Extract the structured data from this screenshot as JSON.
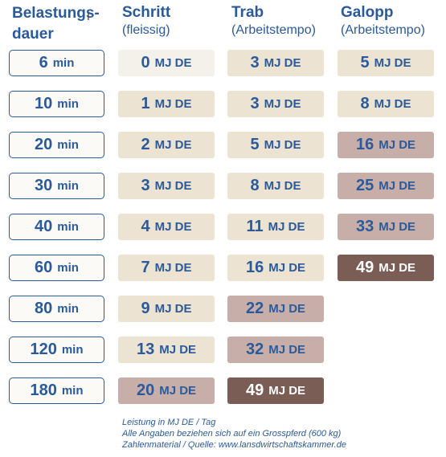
{
  "headers": {
    "duration": {
      "line1": "Belastungs-",
      "line2": "dauer"
    },
    "schritt": {
      "title": "Schritt",
      "sub": "(fleissig)"
    },
    "trab": {
      "title": "Trab",
      "sub": "(Arbeitstempo)"
    },
    "galopp": {
      "title": "Galopp",
      "sub": "(Arbeitstempo)"
    }
  },
  "unit_min": "min",
  "unit_energy": "MJ DE",
  "rows": [
    {
      "duration": "6",
      "schritt": "0",
      "trab": "3",
      "galopp": "5"
    },
    {
      "duration": "10",
      "schritt": "1",
      "trab": "3",
      "galopp": "8"
    },
    {
      "duration": "20",
      "schritt": "2",
      "trab": "5",
      "galopp": "16"
    },
    {
      "duration": "30",
      "schritt": "3",
      "trab": "8",
      "galopp": "25"
    },
    {
      "duration": "40",
      "schritt": "4",
      "trab": "11",
      "galopp": "33"
    },
    {
      "duration": "60",
      "schritt": "7",
      "trab": "16",
      "galopp": "49"
    },
    {
      "duration": "80",
      "schritt": "9",
      "trab": "22",
      "galopp": ""
    },
    {
      "duration": "120",
      "schritt": "13",
      "trab": "32",
      "galopp": ""
    },
    {
      "duration": "180",
      "schritt": "20",
      "trab": "49",
      "galopp": ""
    }
  ],
  "cell_colors": {
    "lvl_0": "#f3f1e9",
    "lvl_1": "#ece3d2",
    "lvl_2": "#c8aea8",
    "lvl_3": "#7a5e55"
  },
  "notes": [
    "Leistung in MJ DE / Tag",
    "Alle Angaben beziehen sich auf ein Grosspferd (600 kg)",
    "Zahlenmaterial / Quelle: www.lansdwirtschaftskammer.de"
  ]
}
